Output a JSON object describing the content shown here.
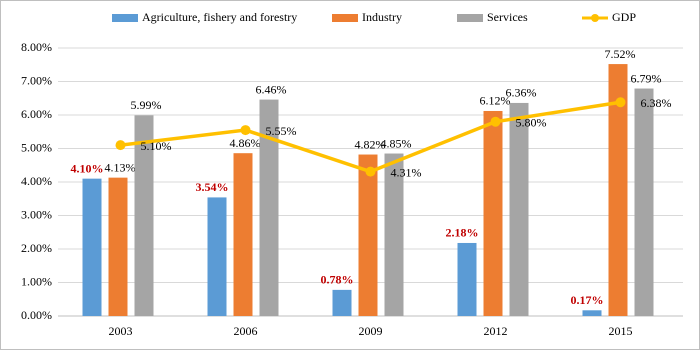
{
  "chart_data": {
    "type": "bar",
    "categories": [
      "2003",
      "2006",
      "2009",
      "2012",
      "2015"
    ],
    "series": [
      {
        "name": "Agriculture, fishery and forestry",
        "color": "#5b9bd5",
        "values": [
          4.1,
          3.54,
          0.78,
          2.18,
          0.17
        ],
        "value_labels": [
          "4.10%",
          "3.54%",
          "0.78%",
          "2.18%",
          "0.17%"
        ]
      },
      {
        "name": "Industry",
        "color": "#ed7d31",
        "values": [
          4.13,
          4.86,
          4.82,
          6.12,
          7.52
        ],
        "value_labels": [
          "4.13%",
          "4.86%",
          "4.82%",
          "6.12%",
          "7.52%"
        ]
      },
      {
        "name": "Services",
        "color": "#a5a5a5",
        "values": [
          5.99,
          6.46,
          4.85,
          6.36,
          6.79
        ],
        "value_labels": [
          "5.99%",
          "6.46%",
          "4.85%",
          "6.36%",
          "6.79%"
        ]
      },
      {
        "name": "GDP",
        "color": "#ffc000",
        "type": "line",
        "values": [
          5.1,
          5.55,
          4.31,
          5.8,
          6.38
        ],
        "value_labels": [
          "5.10%",
          "5.55%",
          "4.31%",
          "5.80%",
          "6.38%"
        ]
      }
    ],
    "ylim": [
      0,
      8
    ],
    "yticks": [
      {
        "value": 0,
        "label": "0.00%"
      },
      {
        "value": 1,
        "label": "1.00%"
      },
      {
        "value": 2,
        "label": "2.00%"
      },
      {
        "value": 3,
        "label": "3.00%"
      },
      {
        "value": 4,
        "label": "4.00%"
      },
      {
        "value": 5,
        "label": "5.00%"
      },
      {
        "value": 6,
        "label": "6.00%"
      },
      {
        "value": 7,
        "label": "7.00%"
      },
      {
        "value": 8,
        "label": "8.00%"
      }
    ],
    "grid": true,
    "legend": "top"
  }
}
